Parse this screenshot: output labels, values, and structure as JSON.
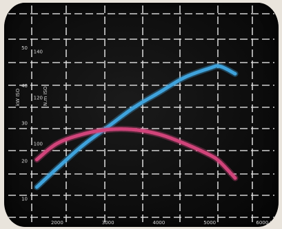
{
  "chart_data": {
    "type": "line",
    "x": [
      1600,
      2000,
      2500,
      3000,
      3500,
      4000,
      4500,
      5000,
      5200,
      5500
    ],
    "xlim": [
      1500,
      6000
    ],
    "x_ticks": [
      "2000",
      "3000",
      "4000",
      "5000",
      "6000 tr/min"
    ],
    "series": [
      {
        "label": "kW ISO",
        "color": "#3fa3dc",
        "values": [
          13,
          18,
          24,
          29,
          34,
          38,
          42,
          44.5,
          45,
          43
        ],
        "axis": "left",
        "ylim": [
          5,
          60
        ],
        "ticks": [
          "10",
          "20",
          "30",
          "40",
          "50"
        ],
        "axis_label": "kW ISO"
      },
      {
        "label": "N.m ISO",
        "color": "#d0447a",
        "values": [
          93,
          100,
          104,
          106,
          106,
          104,
          100,
          95,
          92,
          85
        ],
        "axis": "right",
        "ylim": [
          68,
          158
        ],
        "ticks": [
          "100",
          "120",
          "140"
        ],
        "axis_label": "N.m ISO"
      }
    ],
    "grid": true,
    "background": "#101010"
  }
}
